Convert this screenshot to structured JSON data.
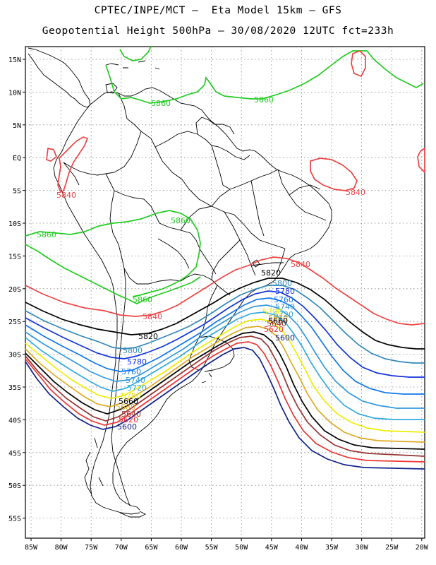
{
  "header": {
    "line1": "CPTEC/INPE/MCT –  Eta Model 15km – GFS",
    "line2": "Geopotential Height 500hPa – 30/08/2020 12UTC fct=233h"
  },
  "map": {
    "lat_labels": [
      "15N",
      "10N",
      "5N",
      "EQ",
      "5S",
      "10S",
      "15S",
      "20S",
      "25S",
      "30S",
      "35S",
      "40S",
      "45S",
      "50S",
      "55S"
    ],
    "lon_labels": [
      "85W",
      "80W",
      "75W",
      "70W",
      "65W",
      "60W",
      "55W",
      "50W",
      "45W",
      "40W",
      "35W",
      "30W",
      "25W",
      "20W"
    ],
    "contour_colors": {
      "5860": "#22cc22",
      "5840": "#ee4444",
      "5820": "#000000",
      "5800": "#3388bb",
      "5780": "#1133dd",
      "5760": "#1177ee",
      "5740": "#3399dd",
      "5720": "#33aadd",
      "5700": "#eeee00",
      "5680": "#ddaa22",
      "5660": "#000000",
      "5640": "#993333",
      "5620": "#ee3333",
      "5600": "#112288"
    },
    "labels": {
      "c5860_a": "5860",
      "c5860_b": "5860",
      "c5860_c": "5860",
      "c5860_d": "5860",
      "c5860_e": "5860",
      "c5840_a": "5840",
      "c5840_b": "5840",
      "c5840_c": "5840",
      "c5840_d": "5840",
      "c5820_a": "5820",
      "c5820_b": "5820",
      "c5800_a": "5800",
      "c5800_b": "5800",
      "c5780_a": "5780",
      "c5780_b": "5780",
      "c5760_a": "5760",
      "c5760_b": "5760",
      "c5740_a": "5740",
      "c5740_b": "5740",
      "c5720_a": "5720",
      "c5720_b": "5720",
      "c5700_a": "5700",
      "c5700_b": "5700",
      "c5680_a": "5680",
      "c5680_b": "5680",
      "c5660_a": "5660",
      "c5660_b": "5660",
      "c5640_a": "5640",
      "c5640_b": "5640",
      "c5620_a": "5620",
      "c5620_b": "5620",
      "c5600_a": "5600",
      "c5600_b": "5600"
    }
  }
}
